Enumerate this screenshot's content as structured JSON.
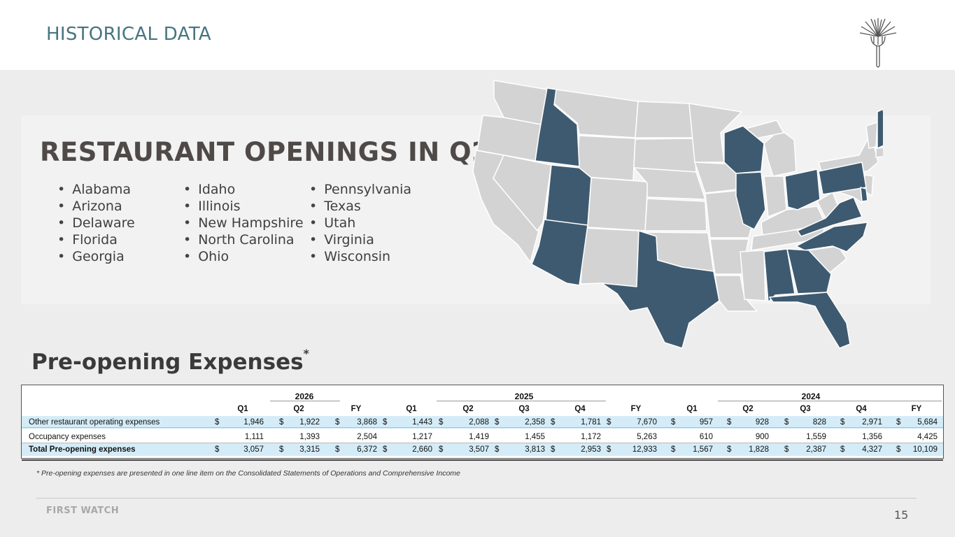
{
  "header": {
    "title": "HISTORICAL DATA"
  },
  "openings": {
    "title": "RESTAURANT OPENINGS IN Q2",
    "columns": [
      [
        "Alabama",
        "Arizona",
        "Delaware",
        "Florida",
        "Georgia"
      ],
      [
        "Idaho",
        "Illinois",
        "New Hampshire",
        "North Carolina",
        "Ohio"
      ],
      [
        "Pennsylvania",
        "Texas",
        "Utah",
        "Virginia",
        "Wisconsin"
      ]
    ]
  },
  "colors": {
    "highlight_state": "#3e5a70",
    "other_state": "#d3d3d3",
    "title_teal": "#46767f",
    "total_row_bg": "#d4ecf7"
  },
  "pre_opening": {
    "title": "Pre-opening Expenses",
    "title_mark": "*",
    "years": [
      "2026",
      "2025",
      "2024"
    ],
    "quarters": [
      "Q1",
      "Q2",
      "FY",
      "Q1",
      "Q2",
      "Q3",
      "Q4",
      "FY",
      "Q1",
      "Q2",
      "Q3",
      "Q4",
      "FY"
    ],
    "rows": [
      {
        "label": "Other restaurant operating expenses",
        "dollar": true,
        "values": [
          "1,946",
          "1,922",
          "3,868",
          "1,443",
          "2,088",
          "2,358",
          "1,781",
          "7,670",
          "957",
          "928",
          "828",
          "2,971",
          "5,684"
        ]
      },
      {
        "label": "Occupancy expenses",
        "dollar": false,
        "values": [
          "1,111",
          "1,393",
          "2,504",
          "1,217",
          "1,419",
          "1,455",
          "1,172",
          "5,263",
          "610",
          "900",
          "1,559",
          "1,356",
          "4,425"
        ]
      },
      {
        "label": "Total Pre-opening expenses",
        "dollar": true,
        "values": [
          "3,057",
          "3,315",
          "6,372",
          "2,660",
          "3,507",
          "3,813",
          "2,953",
          "12,933",
          "1,567",
          "1,828",
          "2,387",
          "4,327",
          "10,109"
        ]
      }
    ],
    "currency_symbol": "$",
    "footnote": "* Pre-opening expenses are presented in one line item on the Consolidated Statements of Operations and Comprehensive Income"
  },
  "footer": {
    "brand": "FIRST WATCH",
    "page": "15"
  }
}
